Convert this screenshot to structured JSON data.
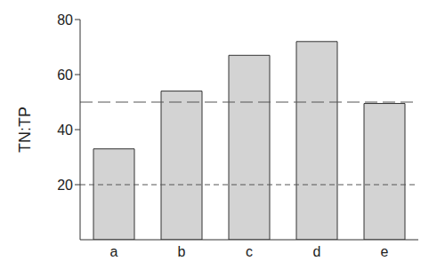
{
  "chart_data": {
    "type": "bar",
    "categories": [
      "a",
      "b",
      "c",
      "d",
      "e"
    ],
    "values": [
      33,
      54,
      67,
      72,
      49.5
    ],
    "color": "#d3d3d3",
    "y_label": "TN:TP",
    "ylim": [
      0,
      80
    ],
    "yticks": [
      20,
      40,
      60,
      80
    ],
    "reference_lines": [
      50,
      20
    ],
    "grid": false
  }
}
